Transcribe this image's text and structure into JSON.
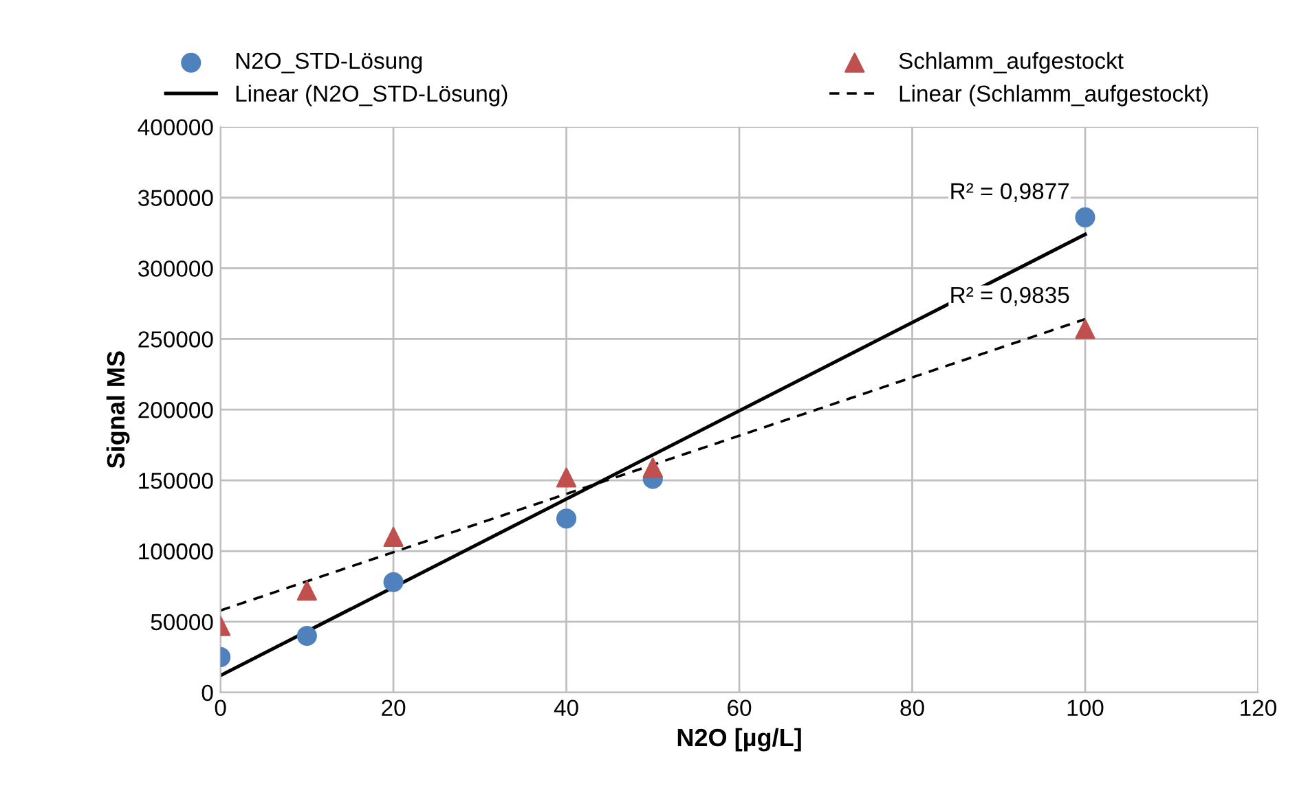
{
  "chart_data": {
    "type": "scatter",
    "xlabel": "N2O [µg/L]",
    "ylabel": "Signal MS",
    "xlim": [
      0,
      120
    ],
    "xticks": [
      0,
      20,
      40,
      60,
      80,
      100,
      120
    ],
    "ylim": [
      0,
      400000
    ],
    "yticks": [
      0,
      50000,
      100000,
      150000,
      200000,
      250000,
      300000,
      350000,
      400000
    ],
    "grid": true,
    "legend": "top",
    "series": [
      {
        "name": "N2O_STD-Lösung",
        "marker": "circle",
        "color": "#4f81bd",
        "x": [
          0,
          10,
          20,
          40,
          50,
          100
        ],
        "values": [
          25000,
          40000,
          78000,
          123000,
          151000,
          336000
        ]
      },
      {
        "name": "Schlamm_aufgestockt",
        "marker": "triangle",
        "color": "#c0504d",
        "x": [
          0,
          10,
          20,
          40,
          50,
          100
        ],
        "values": [
          47000,
          72000,
          110000,
          152000,
          159000,
          257000
        ]
      },
      {
        "name": "Linear (N2O_STD-Lösung)",
        "type": "line",
        "marker": "none",
        "line_style": "solid",
        "color": "#000000",
        "x": [
          0,
          100
        ],
        "values": [
          12000,
          324000
        ]
      },
      {
        "name": "Linear (Schlamm_aufgestockt)",
        "type": "line",
        "marker": "none",
        "line_style": "dashed",
        "color": "#000000",
        "x": [
          0,
          100
        ],
        "values": [
          58000,
          264000
        ]
      }
    ],
    "annotations": [
      "R² = 0,9877",
      "R² = 0,9835"
    ]
  }
}
